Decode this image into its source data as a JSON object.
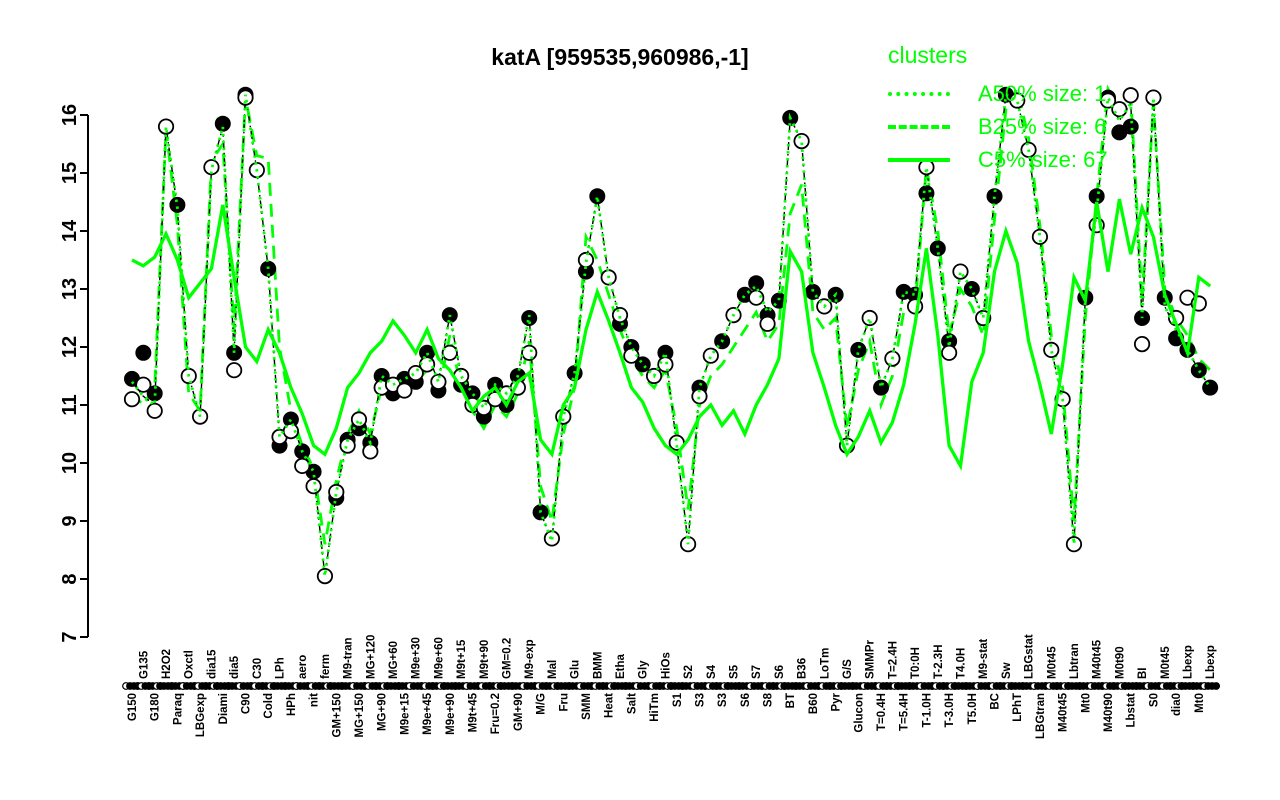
{
  "title": "katA [959535,960986,-1]",
  "legend": {
    "title": "clusters",
    "entries": [
      {
        "label": "A50% size: 1",
        "style": "dotted"
      },
      {
        "label": "B25% size: 6",
        "style": "dashed"
      },
      {
        "label": "C5% size: 67",
        "style": "solid"
      }
    ]
  },
  "colors": {
    "cluster_green": "#00FF00",
    "gene_black": "#000000",
    "background": "#FFFFFF"
  },
  "chart_data": {
    "type": "line",
    "title": "katA [959535,960986,-1]",
    "ylabel": "",
    "xlabel": "",
    "ylim": [
      7,
      16
    ],
    "yticks": [
      7,
      8,
      9,
      10,
      11,
      12,
      13,
      14,
      15,
      16
    ],
    "grid": false,
    "legend_position": "top-right",
    "categories": [
      {
        "label": "G150",
        "row": "below"
      },
      {
        "label": "G135",
        "row": "above"
      },
      {
        "label": "G180",
        "row": "below"
      },
      {
        "label": "H2O2",
        "row": "above"
      },
      {
        "label": "Paraq",
        "row": "below"
      },
      {
        "label": "Oxctl",
        "row": "above"
      },
      {
        "label": "LBGexp",
        "row": "below"
      },
      {
        "label": "dia15",
        "row": "above"
      },
      {
        "label": "Diami",
        "row": "below"
      },
      {
        "label": "dia5",
        "row": "above"
      },
      {
        "label": "C90",
        "row": "below"
      },
      {
        "label": "C30",
        "row": "above"
      },
      {
        "label": "Cold",
        "row": "below"
      },
      {
        "label": "LPh",
        "row": "above"
      },
      {
        "label": "HPh",
        "row": "below"
      },
      {
        "label": "aero",
        "row": "above"
      },
      {
        "label": "nit",
        "row": "below"
      },
      {
        "label": "ferm",
        "row": "above"
      },
      {
        "label": "GM+150",
        "row": "below"
      },
      {
        "label": "M9-tran",
        "row": "above"
      },
      {
        "label": "MG+150",
        "row": "below"
      },
      {
        "label": "MG+120",
        "row": "above"
      },
      {
        "label": "MG+90",
        "row": "below"
      },
      {
        "label": "MG+60",
        "row": "above"
      },
      {
        "label": "M9e+15",
        "row": "below"
      },
      {
        "label": "M9e+30",
        "row": "above"
      },
      {
        "label": "M9e+45",
        "row": "below"
      },
      {
        "label": "M9e+60",
        "row": "above"
      },
      {
        "label": "M9e+90",
        "row": "below"
      },
      {
        "label": "M9t+15",
        "row": "above"
      },
      {
        "label": "M9t+45",
        "row": "below"
      },
      {
        "label": "M9t+90",
        "row": "above"
      },
      {
        "label": "Fru=0.2",
        "row": "below"
      },
      {
        "label": "GM=0.2",
        "row": "above"
      },
      {
        "label": "GM+90",
        "row": "below"
      },
      {
        "label": "M9-exp",
        "row": "above"
      },
      {
        "label": "M/G",
        "row": "below"
      },
      {
        "label": "Mal",
        "row": "above"
      },
      {
        "label": "Fru",
        "row": "below"
      },
      {
        "label": "Glu",
        "row": "above"
      },
      {
        "label": "SMM",
        "row": "below"
      },
      {
        "label": "BMM",
        "row": "above"
      },
      {
        "label": "Heat",
        "row": "below"
      },
      {
        "label": "Etha",
        "row": "above"
      },
      {
        "label": "Salt",
        "row": "below"
      },
      {
        "label": "Gly",
        "row": "above"
      },
      {
        "label": "HiTm",
        "row": "below"
      },
      {
        "label": "HiOs",
        "row": "above"
      },
      {
        "label": "S1",
        "row": "below"
      },
      {
        "label": "S2",
        "row": "above"
      },
      {
        "label": "S3",
        "row": "below"
      },
      {
        "label": "S4",
        "row": "above"
      },
      {
        "label": "S3",
        "row": "below"
      },
      {
        "label": "S5",
        "row": "above"
      },
      {
        "label": "S6",
        "row": "below"
      },
      {
        "label": "S7",
        "row": "above"
      },
      {
        "label": "S8",
        "row": "below"
      },
      {
        "label": "S6",
        "row": "above"
      },
      {
        "label": "BT",
        "row": "below"
      },
      {
        "label": "B36",
        "row": "above"
      },
      {
        "label": "B60",
        "row": "below"
      },
      {
        "label": "LoTm",
        "row": "above"
      },
      {
        "label": "Pyr",
        "row": "below"
      },
      {
        "label": "G/S",
        "row": "above"
      },
      {
        "label": "Glucon",
        "row": "below"
      },
      {
        "label": "SMMPr",
        "row": "above"
      },
      {
        "label": "T=0.4H",
        "row": "below"
      },
      {
        "label": "T=2.4H",
        "row": "above"
      },
      {
        "label": "T=5.4H",
        "row": "below"
      },
      {
        "label": "T0:0H",
        "row": "above"
      },
      {
        "label": "T-1.0H",
        "row": "below"
      },
      {
        "label": "T-2.3H",
        "row": "above"
      },
      {
        "label": "T-3.0H",
        "row": "below"
      },
      {
        "label": "T4.0H",
        "row": "above"
      },
      {
        "label": "T5.0H",
        "row": "below"
      },
      {
        "label": "M9-stat",
        "row": "above"
      },
      {
        "label": "BC",
        "row": "below"
      },
      {
        "label": "Sw",
        "row": "above"
      },
      {
        "label": "LPhT",
        "row": "below"
      },
      {
        "label": "LBGstat",
        "row": "above"
      },
      {
        "label": "LBGtran",
        "row": "below"
      },
      {
        "label": "M0t45",
        "row": "above"
      },
      {
        "label": "M40t45",
        "row": "below"
      },
      {
        "label": "Lbtran",
        "row": "above"
      },
      {
        "label": "Mt0",
        "row": "below"
      },
      {
        "label": "M40t45",
        "row": "above"
      },
      {
        "label": "M40t90",
        "row": "below"
      },
      {
        "label": "M0t90",
        "row": "above"
      },
      {
        "label": "Lbstat",
        "row": "below"
      },
      {
        "label": "BI",
        "row": "above"
      },
      {
        "label": "S0",
        "row": "below"
      },
      {
        "label": "M0t45",
        "row": "above"
      },
      {
        "label": "dia0",
        "row": "below"
      },
      {
        "label": "Lbexp",
        "row": "above"
      },
      {
        "label": "Mt0",
        "row": "below"
      },
      {
        "label": "Lbexp",
        "row": "above"
      }
    ],
    "series": [
      {
        "name": "katA gene profile",
        "style": "dashdot",
        "color": "#000000",
        "values": [
          11.4,
          11.15,
          11.0,
          15.8,
          14.4,
          11.5,
          10.8,
          15.05,
          15.8,
          11.9,
          16.35,
          15.05,
          13.35,
          10.45,
          10.75,
          10.2,
          9.85,
          8.05,
          9.5,
          10.4,
          10.75,
          10.35,
          11.5,
          11.35,
          11.45,
          11.55,
          11.9,
          11.4,
          12.55,
          11.5,
          11.2,
          10.95,
          11.35,
          11.2,
          11.5,
          12.55,
          9.15,
          8.65,
          10.8,
          11.55,
          13.45,
          14.6,
          13.2,
          12.5,
          12.0,
          11.7,
          11.5,
          11.9,
          10.3,
          8.6,
          11.3,
          11.85,
          12.1,
          12.55,
          12.9,
          13.05,
          12.6,
          12.8,
          15.95,
          15.55,
          12.95,
          12.7,
          12.9,
          10.3,
          11.95,
          12.5,
          11.3,
          11.8,
          12.95,
          12.9,
          15.1,
          13.7,
          12.0,
          13.3,
          13.0,
          12.5,
          14.6,
          16.35,
          16.25,
          15.4,
          13.9,
          11.95,
          11.1,
          8.6,
          12.85,
          14.35,
          16.3,
          15.9,
          16.2,
          12.5,
          16.3,
          12.7,
          12.3,
          11.95,
          11.6,
          11.3
        ]
      },
      {
        "name": "A50% size: 1",
        "style": "dotted",
        "color": "#00FF00",
        "values": [
          11.4,
          11.15,
          11.0,
          15.8,
          14.4,
          11.5,
          10.8,
          15.05,
          15.8,
          11.9,
          16.35,
          15.05,
          13.35,
          10.45,
          10.75,
          10.2,
          9.85,
          8.05,
          9.5,
          10.4,
          10.75,
          10.35,
          11.5,
          11.35,
          11.45,
          11.55,
          11.9,
          11.4,
          12.55,
          11.5,
          11.2,
          10.95,
          11.35,
          11.2,
          11.5,
          12.55,
          9.15,
          8.65,
          10.8,
          11.55,
          13.45,
          14.6,
          13.2,
          12.5,
          12.0,
          11.7,
          11.5,
          11.9,
          10.3,
          8.6,
          11.3,
          11.85,
          12.1,
          12.55,
          12.9,
          13.05,
          12.6,
          12.8,
          15.95,
          15.55,
          12.95,
          12.7,
          12.9,
          10.3,
          11.95,
          12.5,
          11.3,
          11.8,
          12.95,
          12.9,
          15.1,
          13.7,
          12.0,
          13.3,
          13.0,
          12.5,
          14.6,
          16.35,
          16.25,
          15.4,
          13.9,
          11.95,
          11.1,
          8.6,
          12.85,
          14.35,
          16.3,
          15.9,
          16.2,
          12.5,
          16.3,
          12.7,
          12.3,
          11.95,
          11.6,
          11.3
        ]
      },
      {
        "name": "B25% size: 6",
        "style": "dashed",
        "color": "#00FF00",
        "values": [
          11.2,
          11.0,
          11.3,
          15.75,
          14.1,
          11.2,
          10.9,
          15.2,
          15.5,
          12.3,
          16.3,
          15.3,
          15.25,
          12.0,
          10.9,
          10.3,
          9.9,
          8.6,
          9.7,
          10.5,
          10.9,
          10.5,
          11.3,
          11.1,
          11.2,
          11.4,
          11.6,
          11.2,
          12.2,
          11.3,
          10.9,
          10.6,
          11.0,
          10.8,
          11.2,
          12.1,
          9.6,
          9.0,
          10.5,
          11.3,
          13.9,
          13.5,
          12.9,
          12.3,
          11.8,
          11.5,
          11.3,
          11.6,
          10.6,
          9.2,
          11.0,
          11.5,
          11.7,
          12.0,
          12.3,
          12.6,
          12.1,
          12.4,
          14.3,
          14.8,
          12.6,
          12.3,
          12.5,
          10.6,
          11.6,
          12.1,
          11.0,
          11.5,
          12.6,
          12.7,
          15.1,
          14.0,
          12.2,
          13.0,
          12.7,
          12.2,
          14.2,
          16.1,
          16.45,
          15.6,
          14.1,
          12.2,
          11.3,
          9.0,
          12.5,
          14.6,
          16.45,
          16.1,
          16.35,
          12.8,
          16.2,
          13.0,
          12.5,
          12.2,
          11.8,
          11.6
        ]
      },
      {
        "name": "C5% size: 67",
        "style": "solid",
        "color": "#00FF00",
        "values": [
          13.5,
          13.4,
          13.55,
          13.95,
          13.5,
          12.85,
          13.1,
          13.35,
          14.45,
          13.2,
          12.0,
          11.75,
          12.3,
          11.9,
          11.3,
          10.85,
          10.3,
          10.15,
          10.6,
          11.3,
          11.55,
          11.9,
          12.1,
          12.45,
          12.2,
          11.9,
          12.3,
          11.8,
          11.6,
          11.3,
          10.9,
          11.15,
          11.3,
          11.0,
          11.4,
          11.55,
          10.4,
          10.15,
          11.0,
          11.3,
          12.3,
          12.95,
          12.45,
          11.9,
          11.3,
          11.05,
          10.6,
          10.3,
          10.15,
          10.4,
          10.8,
          11.0,
          10.65,
          10.9,
          10.5,
          11.0,
          11.35,
          11.8,
          13.65,
          13.3,
          11.9,
          11.3,
          10.65,
          10.15,
          10.45,
          10.9,
          10.35,
          10.7,
          11.35,
          12.4,
          13.7,
          12.2,
          10.3,
          9.95,
          11.4,
          11.9,
          13.3,
          14.0,
          13.45,
          12.1,
          11.35,
          10.5,
          11.7,
          13.2,
          12.8,
          14.5,
          13.3,
          14.55,
          13.6,
          14.4,
          13.9,
          12.9,
          12.4,
          11.9,
          13.2,
          13.05
        ]
      }
    ],
    "samples_filled": [
      11.45,
      11.9,
      11.2,
      null,
      14.45,
      null,
      null,
      null,
      15.85,
      11.9,
      16.35,
      null,
      13.35,
      10.3,
      10.75,
      10.2,
      9.85,
      null,
      9.4,
      10.4,
      10.6,
      10.35,
      11.5,
      11.2,
      11.45,
      11.4,
      11.9,
      11.25,
      12.55,
      11.35,
      11.2,
      10.8,
      11.35,
      11.0,
      11.5,
      12.5,
      9.15,
      null,
      null,
      11.55,
      13.3,
      14.6,
      null,
      12.4,
      12.0,
      11.7,
      null,
      11.9,
      null,
      null,
      11.3,
      null,
      12.1,
      null,
      12.9,
      13.1,
      12.55,
      12.8,
      15.95,
      null,
      12.95,
      null,
      12.9,
      null,
      11.95,
      null,
      11.3,
      null,
      12.95,
      12.9,
      14.65,
      13.7,
      12.1,
      null,
      13.0,
      null,
      14.6,
      16.35,
      null,
      null,
      null,
      null,
      null,
      null,
      12.85,
      14.6,
      16.3,
      15.7,
      15.8,
      12.5,
      null,
      12.85,
      12.15,
      11.95,
      11.6,
      11.3
    ],
    "samples_open": [
      11.1,
      11.35,
      10.9,
      15.8,
      null,
      11.5,
      10.8,
      15.1,
      null,
      11.6,
      16.3,
      15.05,
      null,
      10.45,
      10.55,
      9.95,
      9.6,
      8.05,
      9.5,
      10.3,
      10.75,
      10.2,
      11.3,
      11.35,
      11.25,
      11.55,
      11.7,
      11.4,
      11.9,
      11.5,
      11.0,
      10.95,
      11.1,
      11.2,
      11.3,
      11.9,
      null,
      8.7,
      10.8,
      null,
      13.5,
      null,
      13.2,
      12.55,
      11.85,
      null,
      11.5,
      11.7,
      10.35,
      8.6,
      11.15,
      11.85,
      null,
      12.55,
      null,
      12.85,
      12.4,
      null,
      null,
      15.55,
      null,
      12.7,
      null,
      10.3,
      null,
      12.5,
      null,
      11.8,
      null,
      12.7,
      15.1,
      null,
      11.9,
      13.3,
      null,
      12.5,
      null,
      null,
      16.25,
      15.4,
      13.9,
      11.95,
      11.1,
      8.6,
      null,
      14.1,
      16.25,
      16.1,
      16.34,
      12.05,
      16.3,
      null,
      12.5,
      12.85,
      12.75,
      null
    ]
  }
}
